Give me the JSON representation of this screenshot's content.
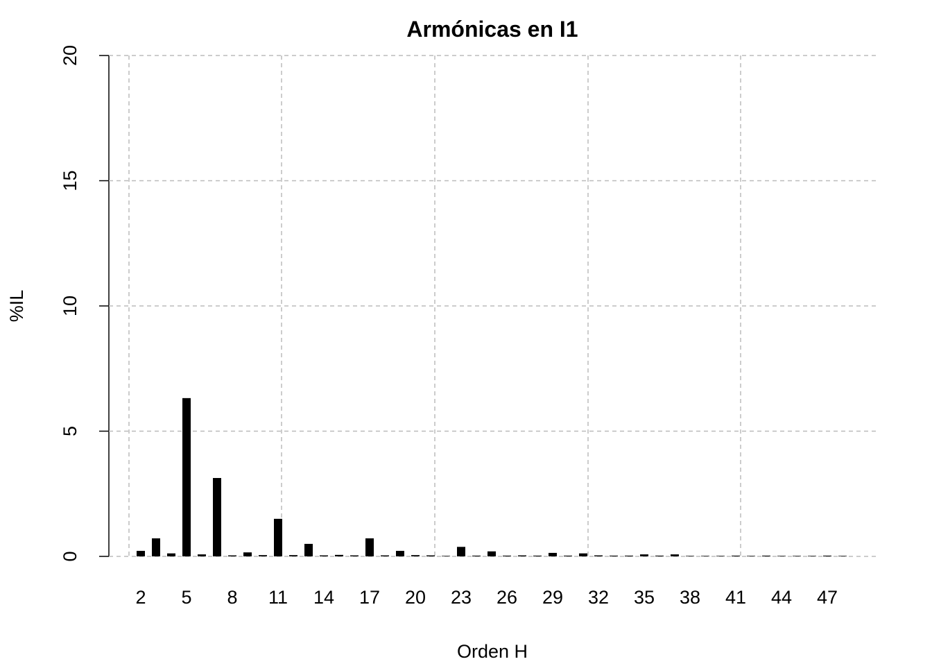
{
  "chart_data": {
    "type": "bar",
    "title": "Armónicas en I1",
    "x_label": "Orden H",
    "y_label": "%IL",
    "categories": [
      "2",
      null,
      null,
      "5",
      null,
      null,
      "8",
      null,
      null,
      "11",
      null,
      null,
      "14",
      null,
      null,
      "17",
      null,
      null,
      "20",
      null,
      null,
      "23",
      null,
      null,
      "26",
      null,
      null,
      "29",
      null,
      null,
      "32",
      null,
      null,
      "35",
      null,
      null,
      "38",
      null,
      null,
      "41",
      null,
      null,
      "44",
      null,
      null,
      "47",
      null
    ],
    "values": [
      0.22,
      0.72,
      0.12,
      6.32,
      0.08,
      3.13,
      0.04,
      0.16,
      0.05,
      1.5,
      0.05,
      0.5,
      0.04,
      0.06,
      0.04,
      0.72,
      0.04,
      0.22,
      0.05,
      0.04,
      0.02,
      0.38,
      0.03,
      0.2,
      0.03,
      0.04,
      0.03,
      0.14,
      0.03,
      0.12,
      0.04,
      0.03,
      0.03,
      0.08,
      0.03,
      0.08,
      0.02,
      0.02,
      0.02,
      0.03,
      0.02,
      0.03,
      0.02,
      0.02,
      0.02,
      0.03,
      0.02
    ],
    "color": "#000000",
    "ylim": [
      0,
      20
    ],
    "yticks": [
      0,
      5,
      10,
      15,
      20
    ],
    "grid": true
  }
}
